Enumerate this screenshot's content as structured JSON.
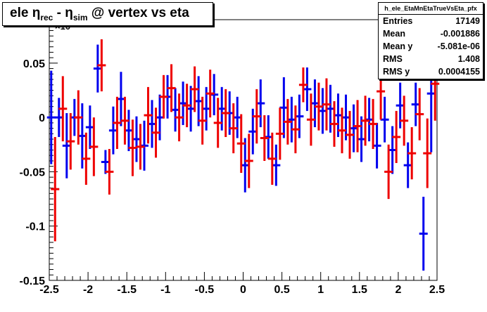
{
  "title": {
    "main": "ele ",
    "eta1": "η",
    "sub1": "rec",
    "mid": " - ",
    "eta2": "η",
    "sub2": "sim",
    "tail": " @ vertex vs eta"
  },
  "stats": {
    "header": "h_ele_EtaMnEtaTrueVsEta_pfx",
    "rows": [
      {
        "key": "Entries",
        "value": "17149"
      },
      {
        "key": "Mean",
        "value": "-0.001886"
      },
      {
        "key": "Mean y",
        "value": "-5.081e-06"
      },
      {
        "key": "RMS",
        "value": "1.408"
      },
      {
        "key": "RMS y",
        "value": "0.0004155"
      }
    ]
  },
  "colors": {
    "blue_series": "#0000ee",
    "red_series": "#ee0000",
    "axis": "#000000"
  },
  "chart_data": {
    "type": "scatter",
    "xlim": [
      -2.5,
      2.5
    ],
    "ylim": [
      -0.15,
      0.09
    ],
    "xticks": [
      "-2.5",
      "-2",
      "-1.5",
      "-1",
      "-0.5",
      "0",
      "0.5",
      "1",
      "1.5",
      "2",
      "2.5"
    ],
    "yticks": [
      "-0.15",
      "-0.1",
      "-0.05",
      "0",
      "0.05"
    ],
    "exponent_label": "×10",
    "grid": false,
    "series": [
      {
        "points": [
          [
            -2.475,
            0.0,
            0.043
          ],
          [
            -2.375,
            0.0,
            0.018
          ],
          [
            -2.275,
            -0.026,
            0.03
          ],
          [
            -2.175,
            0.0,
            0.017
          ],
          [
            -2.075,
            -0.017,
            0.03
          ],
          [
            -1.975,
            -0.009,
            0.02
          ],
          [
            -1.875,
            0.045,
            0.022
          ],
          [
            -1.775,
            -0.041,
            0.011
          ],
          [
            -1.675,
            -0.012,
            0.022
          ],
          [
            -1.575,
            0.017,
            0.025
          ],
          [
            -1.475,
            -0.012,
            0.019
          ],
          [
            -1.375,
            -0.02,
            0.021
          ],
          [
            -1.275,
            -0.026,
            0.023
          ],
          [
            -1.175,
            -0.006,
            0.022
          ],
          [
            -1.075,
            0.0,
            0.021
          ],
          [
            -0.975,
            0.019,
            0.02
          ],
          [
            -0.875,
            0.007,
            0.02
          ],
          [
            -0.775,
            0.013,
            0.02
          ],
          [
            -0.675,
            0.008,
            0.021
          ],
          [
            -0.575,
            0.015,
            0.023
          ],
          [
            -0.475,
            0.008,
            0.02
          ],
          [
            -0.375,
            0.021,
            0.019
          ],
          [
            -0.275,
            0.008,
            0.02
          ],
          [
            -0.175,
            0.004,
            0.02
          ],
          [
            -0.075,
            0.0,
            0.019
          ],
          [
            0.025,
            -0.044,
            0.025
          ],
          [
            0.125,
            -0.013,
            0.021
          ],
          [
            0.225,
            0.013,
            0.022
          ],
          [
            0.325,
            -0.018,
            0.02
          ],
          [
            0.425,
            -0.044,
            0.019
          ],
          [
            0.525,
            0.009,
            0.028
          ],
          [
            0.625,
            -0.002,
            0.021
          ],
          [
            0.725,
            0.001,
            0.02
          ],
          [
            0.825,
            0.026,
            0.02
          ],
          [
            0.925,
            0.013,
            0.022
          ],
          [
            1.025,
            0.006,
            0.021
          ],
          [
            1.125,
            0.008,
            0.022
          ],
          [
            1.225,
            0.002,
            0.02
          ],
          [
            1.325,
            0.0,
            0.021
          ],
          [
            1.425,
            -0.01,
            0.022
          ],
          [
            1.525,
            -0.02,
            0.021
          ],
          [
            1.625,
            -0.002,
            0.02
          ],
          [
            1.725,
            -0.026,
            0.021
          ],
          [
            1.825,
            -0.002,
            0.021
          ],
          [
            1.925,
            -0.03,
            0.022
          ],
          [
            2.025,
            0.011,
            0.021
          ],
          [
            2.125,
            -0.044,
            0.021
          ],
          [
            2.225,
            0.012,
            0.02
          ],
          [
            2.325,
            -0.107,
            0.034
          ],
          [
            2.425,
            0.022,
            0.054
          ]
        ]
      },
      {
        "points": [
          [
            -2.425,
            -0.066,
            0.048
          ],
          [
            -2.325,
            0.008,
            0.03
          ],
          [
            -2.225,
            -0.022,
            0.026
          ],
          [
            -2.125,
            0.0,
            0.025
          ],
          [
            -2.025,
            -0.038,
            0.024
          ],
          [
            -1.925,
            -0.027,
            0.027
          ],
          [
            -1.825,
            0.048,
            0.024
          ],
          [
            -1.725,
            -0.05,
            0.021
          ],
          [
            -1.625,
            -0.005,
            0.024
          ],
          [
            -1.525,
            -0.003,
            0.022
          ],
          [
            -1.425,
            -0.028,
            0.026
          ],
          [
            -1.325,
            -0.027,
            0.021
          ],
          [
            -1.225,
            0.002,
            0.026
          ],
          [
            -1.125,
            -0.014,
            0.023
          ],
          [
            -1.025,
            0.019,
            0.02
          ],
          [
            -0.925,
            0.027,
            0.022
          ],
          [
            -0.825,
            0.0,
            0.022
          ],
          [
            -0.725,
            0.011,
            0.02
          ],
          [
            -0.625,
            0.026,
            0.021
          ],
          [
            -0.525,
            -0.003,
            0.022
          ],
          [
            -0.425,
            0.022,
            0.022
          ],
          [
            -0.325,
            -0.005,
            0.023
          ],
          [
            -0.225,
            0.004,
            0.022
          ],
          [
            -0.125,
            -0.01,
            0.023
          ],
          [
            -0.025,
            -0.024,
            0.027
          ],
          [
            0.075,
            -0.04,
            0.025
          ],
          [
            0.175,
            0.001,
            0.025
          ],
          [
            0.275,
            -0.019,
            0.021
          ],
          [
            0.375,
            -0.038,
            0.024
          ],
          [
            0.475,
            -0.015,
            0.024
          ],
          [
            0.575,
            -0.004,
            0.021
          ],
          [
            0.675,
            -0.011,
            0.022
          ],
          [
            0.775,
            0.03,
            0.016
          ],
          [
            0.875,
            -0.002,
            0.024
          ],
          [
            0.975,
            0.01,
            0.022
          ],
          [
            1.075,
            0.012,
            0.024
          ],
          [
            1.175,
            -0.006,
            0.021
          ],
          [
            1.275,
            -0.012,
            0.021
          ],
          [
            1.375,
            -0.016,
            0.022
          ],
          [
            1.475,
            -0.008,
            0.024
          ],
          [
            1.575,
            -0.003,
            0.023
          ],
          [
            1.675,
            -0.006,
            0.023
          ],
          [
            1.775,
            0.024,
            0.026
          ],
          [
            1.875,
            -0.05,
            0.025
          ],
          [
            1.975,
            -0.018,
            0.024
          ],
          [
            2.075,
            -0.003,
            0.023
          ],
          [
            2.175,
            -0.033,
            0.024
          ],
          [
            2.275,
            0.003,
            0.024
          ],
          [
            2.375,
            -0.033,
            0.032
          ],
          [
            2.475,
            0.031,
            0.034
          ]
        ]
      }
    ]
  }
}
